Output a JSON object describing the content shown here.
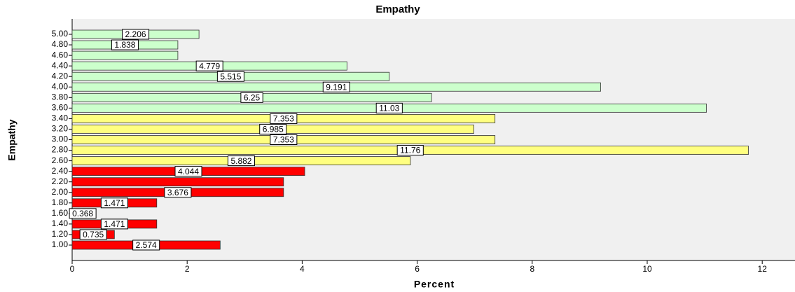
{
  "chart_data": {
    "type": "hbar",
    "title": "Empathy",
    "xlabel": "Percent",
    "ylabel": "Empathy",
    "categories": [
      "1.00",
      "1.20",
      "1.40",
      "1.60",
      "1.80",
      "2.00",
      "2.20",
      "2.40",
      "2.60",
      "2.80",
      "3.00",
      "3.20",
      "3.40",
      "3.60",
      "3.80",
      "4.00",
      "4.20",
      "4.40",
      "4.60",
      "4.80",
      "5.00"
    ],
    "values": [
      2.574,
      0.735,
      1.471,
      0.368,
      1.471,
      3.676,
      3.676,
      4.044,
      5.882,
      11.76,
      7.353,
      6.985,
      7.353,
      11.03,
      6.25,
      9.191,
      5.515,
      4.779,
      1.838,
      1.838,
      2.206
    ],
    "value_labels": [
      "2.574",
      "0.735",
      "1.471",
      "0.368",
      "1.471",
      "3.676",
      null,
      "4.044",
      "5.882",
      "11.76",
      "7.353",
      "6.985",
      "7.353",
      "11.03",
      "6.25",
      "9.191",
      "5.515",
      "4.779",
      null,
      "1.838",
      "2.206"
    ],
    "colors": [
      "#ff0000",
      "#ff0000",
      "#ff0000",
      "#ff0000",
      "#ff0000",
      "#ff0000",
      "#ff0000",
      "#ff0000",
      "#ffff80",
      "#ffff80",
      "#ffff80",
      "#ffff80",
      "#ffff80",
      "#ccffcc",
      "#ccffcc",
      "#ccffcc",
      "#ccffcc",
      "#ccffcc",
      "#ccffcc",
      "#ccffcc",
      "#ccffcc"
    ],
    "xlim": [
      0,
      12.57
    ],
    "xticks": [
      0,
      2,
      4,
      6,
      8,
      10,
      12
    ]
  }
}
